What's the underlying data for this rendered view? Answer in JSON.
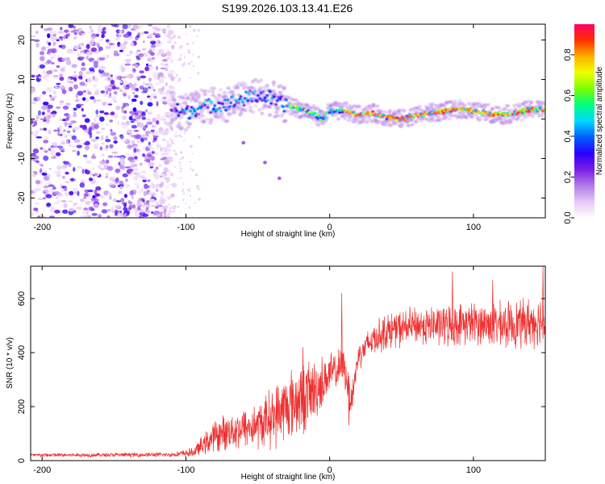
{
  "title": "S199.2026.103.13.41.E26",
  "chart_data": [
    {
      "type": "heatmap",
      "name": "spectrogram",
      "xlabel": "Height of straight line (km)",
      "ylabel": "Frequency (Hz)",
      "xlim": [
        -208,
        150
      ],
      "ylim": [
        -25,
        24
      ],
      "xticks": [
        -200,
        -100,
        0,
        100
      ],
      "yticks": [
        -20,
        -10,
        0,
        10,
        20
      ],
      "colorbar": {
        "label": "Normalized spectral amplitude",
        "range": [
          0.0,
          0.95
        ],
        "ticks": [
          0.0,
          0.2,
          0.4,
          0.6,
          0.8
        ],
        "tick_labels": [
          "0.0",
          "0.2",
          "0.4",
          "0.6",
          "0.8"
        ],
        "colors": [
          "#ffffff",
          "#e6c8f5",
          "#b07ae8",
          "#7a1ee6",
          "#2a00ff",
          "#0060ff",
          "#00d8ff",
          "#00ff80",
          "#7aff00",
          "#f0ff00",
          "#ffb000",
          "#ff3000",
          "#ff0060"
        ]
      },
      "noise_region_x": [
        -208,
        -108
      ],
      "signal_region_x": [
        -110,
        150
      ],
      "signal_frequency_trend": [
        {
          "x": -110,
          "f": 2.5
        },
        {
          "x": -100,
          "f": 1.5
        },
        {
          "x": -90,
          "f": 3
        },
        {
          "x": -80,
          "f": 3.5
        },
        {
          "x": -70,
          "f": 4
        },
        {
          "x": -60,
          "f": 5
        },
        {
          "x": -50,
          "f": 6
        },
        {
          "x": -42,
          "f": 5.5
        },
        {
          "x": -35,
          "f": 4
        },
        {
          "x": -25,
          "f": 3
        },
        {
          "x": -15,
          "f": 2
        },
        {
          "x": -5,
          "f": 0
        },
        {
          "x": 0,
          "f": 2
        },
        {
          "x": 10,
          "f": 2
        },
        {
          "x": 20,
          "f": 1
        },
        {
          "x": 30,
          "f": 1.5
        },
        {
          "x": 40,
          "f": 0.5
        },
        {
          "x": 50,
          "f": 0
        },
        {
          "x": 60,
          "f": 1
        },
        {
          "x": 70,
          "f": 1.5
        },
        {
          "x": 80,
          "f": 2
        },
        {
          "x": 90,
          "f": 2.5
        },
        {
          "x": 100,
          "f": 2
        },
        {
          "x": 110,
          "f": 1.5
        },
        {
          "x": 120,
          "f": 1
        },
        {
          "x": 130,
          "f": 1.5
        },
        {
          "x": 140,
          "f": 2.5
        },
        {
          "x": 150,
          "f": 2.5
        }
      ],
      "outlier_points": [
        {
          "x": -45,
          "f": -11
        },
        {
          "x": -35,
          "f": -15
        },
        {
          "x": -60,
          "f": -6
        }
      ]
    },
    {
      "type": "line",
      "name": "snr",
      "xlabel": "Height of straight line (km)",
      "ylabel": "SNR (10 * v/v)",
      "xlim": [
        -208,
        150
      ],
      "ylim": [
        0,
        720
      ],
      "xticks": [
        -200,
        -100,
        0,
        100
      ],
      "yticks": [
        0,
        200,
        400,
        600
      ],
      "color": "#ee3030",
      "envelope": [
        {
          "x": -208,
          "mean": 20,
          "amp": 8
        },
        {
          "x": -110,
          "mean": 22,
          "amp": 10
        },
        {
          "x": -95,
          "mean": 30,
          "amp": 20
        },
        {
          "x": -80,
          "mean": 90,
          "amp": 70
        },
        {
          "x": -70,
          "mean": 110,
          "amp": 80
        },
        {
          "x": -60,
          "mean": 120,
          "amp": 90
        },
        {
          "x": -50,
          "mean": 130,
          "amp": 100
        },
        {
          "x": -40,
          "mean": 160,
          "amp": 130
        },
        {
          "x": -30,
          "mean": 200,
          "amp": 150
        },
        {
          "x": -20,
          "mean": 230,
          "amp": 160
        },
        {
          "x": -10,
          "mean": 260,
          "amp": 140
        },
        {
          "x": 0,
          "mean": 320,
          "amp": 90
        },
        {
          "x": 10,
          "mean": 350,
          "amp": 80
        },
        {
          "x": 15,
          "mean": 220,
          "amp": 80
        },
        {
          "x": 20,
          "mean": 390,
          "amp": 60
        },
        {
          "x": 30,
          "mean": 450,
          "amp": 70
        },
        {
          "x": 40,
          "mean": 480,
          "amp": 80
        },
        {
          "x": 60,
          "mean": 500,
          "amp": 80
        },
        {
          "x": 80,
          "mean": 500,
          "amp": 90
        },
        {
          "x": 100,
          "mean": 510,
          "amp": 90
        },
        {
          "x": 120,
          "mean": 500,
          "amp": 100
        },
        {
          "x": 150,
          "mean": 520,
          "amp": 110
        }
      ],
      "spikes": [
        {
          "x": -19,
          "y": 420
        },
        {
          "x": 8,
          "y": 620
        },
        {
          "x": 13,
          "y": 130
        },
        {
          "x": 85,
          "y": 700
        },
        {
          "x": 113,
          "y": 670
        },
        {
          "x": 148,
          "y": 720
        }
      ]
    }
  ]
}
